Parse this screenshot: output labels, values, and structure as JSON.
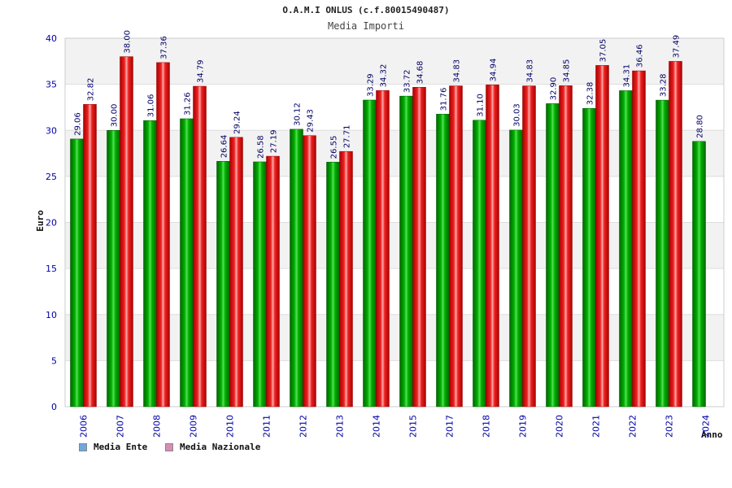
{
  "chart_data": {
    "type": "bar",
    "title": "O.A.M.I ONLUS (c.f.80015490487)",
    "subtitle": "Media Importi",
    "xlabel": "Anno",
    "ylabel": "Euro",
    "ylim": [
      0,
      40
    ],
    "yticks": [
      "0",
      "5",
      "10",
      "15",
      "20",
      "25",
      "30",
      "35",
      "40"
    ],
    "grid": true,
    "legend_position": "bottom-left",
    "categories": [
      "2006",
      "2007",
      "2008",
      "2009",
      "2010",
      "2011",
      "2012",
      "2013",
      "2014",
      "2015",
      "2017",
      "2018",
      "2019",
      "2020",
      "2021",
      "2022",
      "2023",
      "2024"
    ],
    "series": [
      {
        "name": "Media Ente",
        "color": "#00aa00",
        "legend_color": "#6fa8dc",
        "values": [
          29.06,
          30.0,
          31.06,
          31.26,
          26.64,
          26.58,
          30.12,
          26.55,
          33.29,
          33.72,
          31.76,
          31.1,
          30.03,
          32.9,
          32.38,
          34.31,
          33.28,
          28.8
        ],
        "labels": [
          "29.06",
          "30.00",
          "31.06",
          "31.26",
          "26.64",
          "26.58",
          "30.12",
          "26.55",
          "33.29",
          "33.72",
          "31.76",
          "31.10",
          "30.03",
          "32.90",
          "32.38",
          "34.31",
          "33.28",
          "28.80"
        ]
      },
      {
        "name": "Media Nazionale",
        "color": "#ee2222",
        "legend_color": "#d98cb3",
        "values": [
          32.82,
          38.0,
          37.36,
          34.79,
          29.24,
          27.19,
          29.43,
          27.71,
          34.32,
          34.68,
          34.83,
          34.94,
          34.83,
          34.85,
          37.05,
          36.46,
          37.49,
          null
        ],
        "labels": [
          "32.82",
          "38.00",
          "37.36",
          "34.79",
          "29.24",
          "27.19",
          "29.43",
          "27.71",
          "34.32",
          "34.68",
          "34.83",
          "34.94",
          "34.83",
          "34.85",
          "37.05",
          "36.46",
          "37.49",
          ""
        ]
      }
    ]
  }
}
